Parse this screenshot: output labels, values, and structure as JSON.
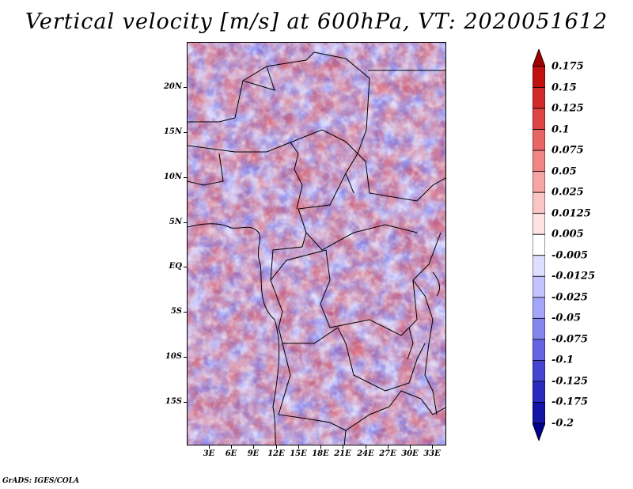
{
  "title": "Vertical velocity [m/s] at 600hPa, VT: 2020051612",
  "credit": "GrADS: IGES/COLA",
  "lat_labels": [
    "20N",
    "15N",
    "10N",
    "5N",
    "EQ",
    "5S",
    "10S",
    "15S"
  ],
  "lon_labels": [
    "3E",
    "6E",
    "9E",
    "12E",
    "15E",
    "18E",
    "21E",
    "24E",
    "27E",
    "30E",
    "33E"
  ],
  "colorbar": {
    "labels": [
      "0.175",
      "0.15",
      "0.125",
      "0.1",
      "0.075",
      "0.05",
      "0.025",
      "0.0125",
      "0.005",
      "-0.005",
      "-0.0125",
      "-0.025",
      "-0.05",
      "-0.075",
      "-0.1",
      "-0.125",
      "-0.175",
      "-0.2"
    ],
    "colors": [
      "#a00000",
      "#c01010",
      "#d02a2a",
      "#e04545",
      "#e86565",
      "#f08585",
      "#f5a5a5",
      "#fac5c5",
      "#fde3e3",
      "#ffffff",
      "#dedeff",
      "#c3c3ff",
      "#a5a5f8",
      "#8585ee",
      "#6565e2",
      "#4545d2",
      "#2a2abf",
      "#1414a5",
      "#00008a"
    ]
  }
}
